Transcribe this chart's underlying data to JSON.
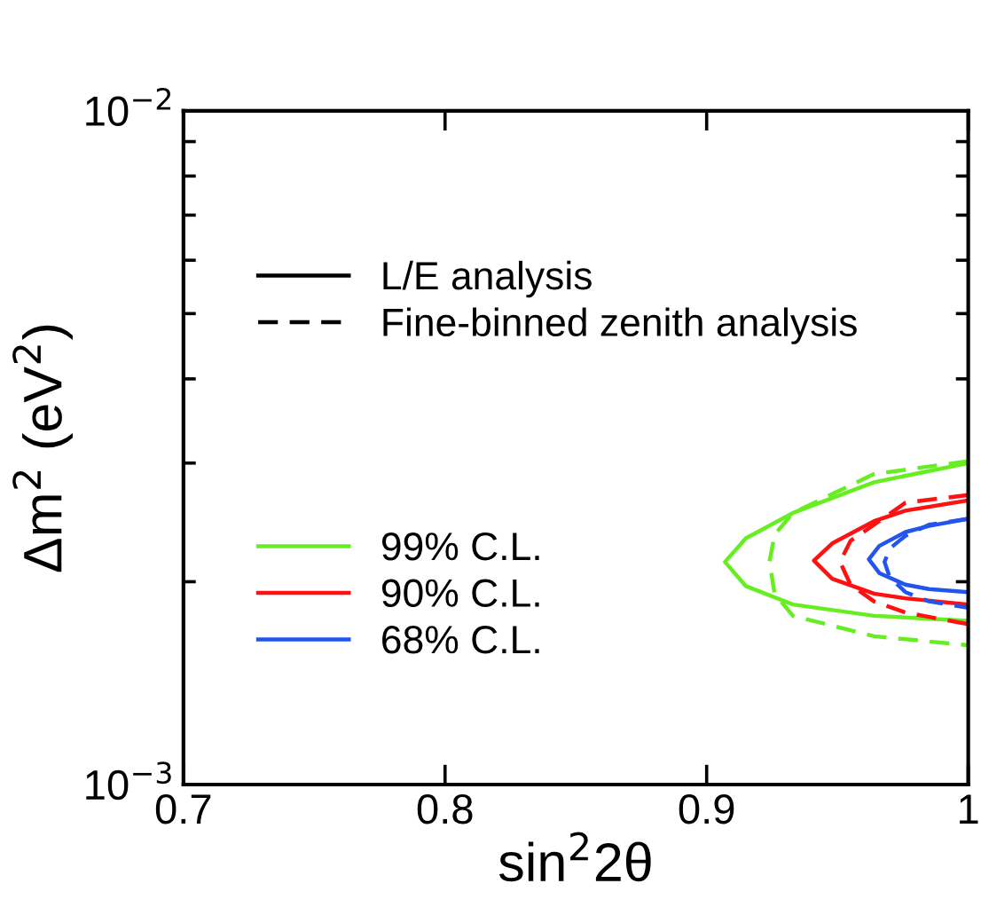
{
  "chart_data": {
    "type": "line",
    "xlabel": "sin$^{2}$2θ",
    "ylabel": "Δm$^{2}$ (eV$^{2}$)",
    "xlim": [
      0.7,
      1
    ],
    "xticks": [
      0.7,
      0.8,
      0.9,
      1
    ],
    "ylim": [
      0.001,
      0.01
    ],
    "yticks": [
      {
        "value": 0.001,
        "label": "10$^{−3}$"
      },
      {
        "value": 0.01,
        "label": "10$^{−2}$"
      }
    ],
    "log": "y",
    "grid": false,
    "legend": "bottom left",
    "marker": "none",
    "annotations": [
      "L/E analysis",
      "Fine-binned zenith analysis"
    ],
    "series": [
      {
        "name": "99% C.L.",
        "color": "#66ee22",
        "line_style": "solid",
        "x": [
          1.0,
          0.964,
          0.933,
          0.915,
          0.907,
          0.915,
          0.933,
          0.964,
          1.0
        ],
        "values": [
          0.003,
          0.00281,
          0.00253,
          0.00232,
          0.00214,
          0.00197,
          0.00185,
          0.00178,
          0.00175
        ]
      },
      {
        "name": "90% C.L.",
        "color": "#ff1111",
        "line_style": "solid",
        "x": [
          1.0,
          0.976,
          0.964,
          0.948,
          0.941,
          0.948,
          0.964,
          0.976,
          1.0
        ],
        "values": [
          0.00264,
          0.00255,
          0.00246,
          0.00228,
          0.00215,
          0.00202,
          0.00192,
          0.00189,
          0.00185
        ]
      },
      {
        "name": "68% C.L.",
        "color": "#2255ee",
        "line_style": "solid",
        "x": [
          1.0,
          0.985,
          0.976,
          0.966,
          0.962,
          0.966,
          0.976,
          0.985,
          1.0
        ],
        "values": [
          0.00248,
          0.00242,
          0.00237,
          0.00226,
          0.00216,
          0.00206,
          0.00198,
          0.00195,
          0.00193
        ]
      },
      {
        "color": "#66ee22",
        "line_style": "dashed",
        "x": [
          1.0,
          0.964,
          0.933,
          0.926,
          0.924,
          0.926,
          0.933,
          0.964,
          1.0
        ],
        "values": [
          0.00302,
          0.00289,
          0.00253,
          0.00235,
          0.00214,
          0.00192,
          0.00178,
          0.00166,
          0.00161
        ]
      },
      {
        "color": "#ff1111",
        "line_style": "dashed",
        "x": [
          1.0,
          0.976,
          0.964,
          0.955,
          0.951,
          0.955,
          0.964,
          0.976,
          1.0
        ],
        "values": [
          0.00269,
          0.00262,
          0.00243,
          0.0023,
          0.00214,
          0.00198,
          0.00187,
          0.0018,
          0.00173
        ]
      },
      {
        "color": "#2255ee",
        "line_style": "dashed",
        "x": [
          1.0,
          0.985,
          0.976,
          0.97,
          0.968,
          0.97,
          0.976,
          0.985,
          1.0
        ],
        "values": [
          0.00248,
          0.00243,
          0.00234,
          0.00224,
          0.00214,
          0.00203,
          0.00193,
          0.00187,
          0.00183
        ]
      }
    ]
  }
}
